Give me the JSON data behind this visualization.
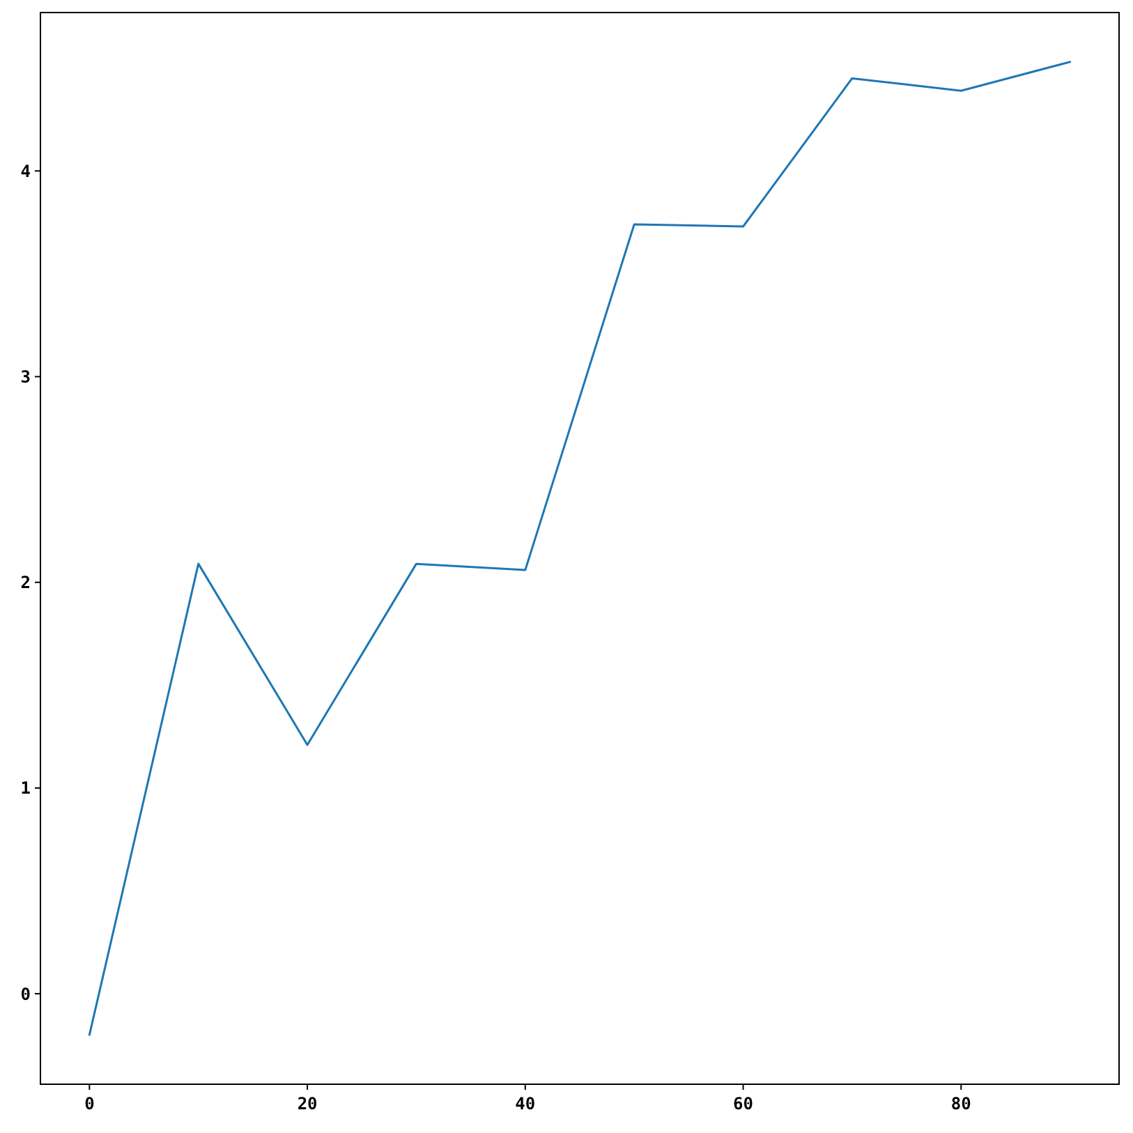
{
  "chart_data": {
    "type": "line",
    "x": [
      0,
      10,
      20,
      30,
      40,
      50,
      60,
      70,
      80,
      90
    ],
    "series": [
      {
        "color": "#1f77b4",
        "values": [
          -0.2,
          2.09,
          1.21,
          2.09,
          2.06,
          3.74,
          3.73,
          4.45,
          4.39,
          4.53
        ]
      }
    ],
    "xlim": [
      -4.5,
      94.5
    ],
    "xticks": [
      0,
      20,
      40,
      60,
      80
    ],
    "ylim": [
      -0.44,
      4.77
    ],
    "yticks": [
      0,
      1,
      2,
      3,
      4
    ],
    "grid": false,
    "marker": "none",
    "line_style": "solid"
  }
}
